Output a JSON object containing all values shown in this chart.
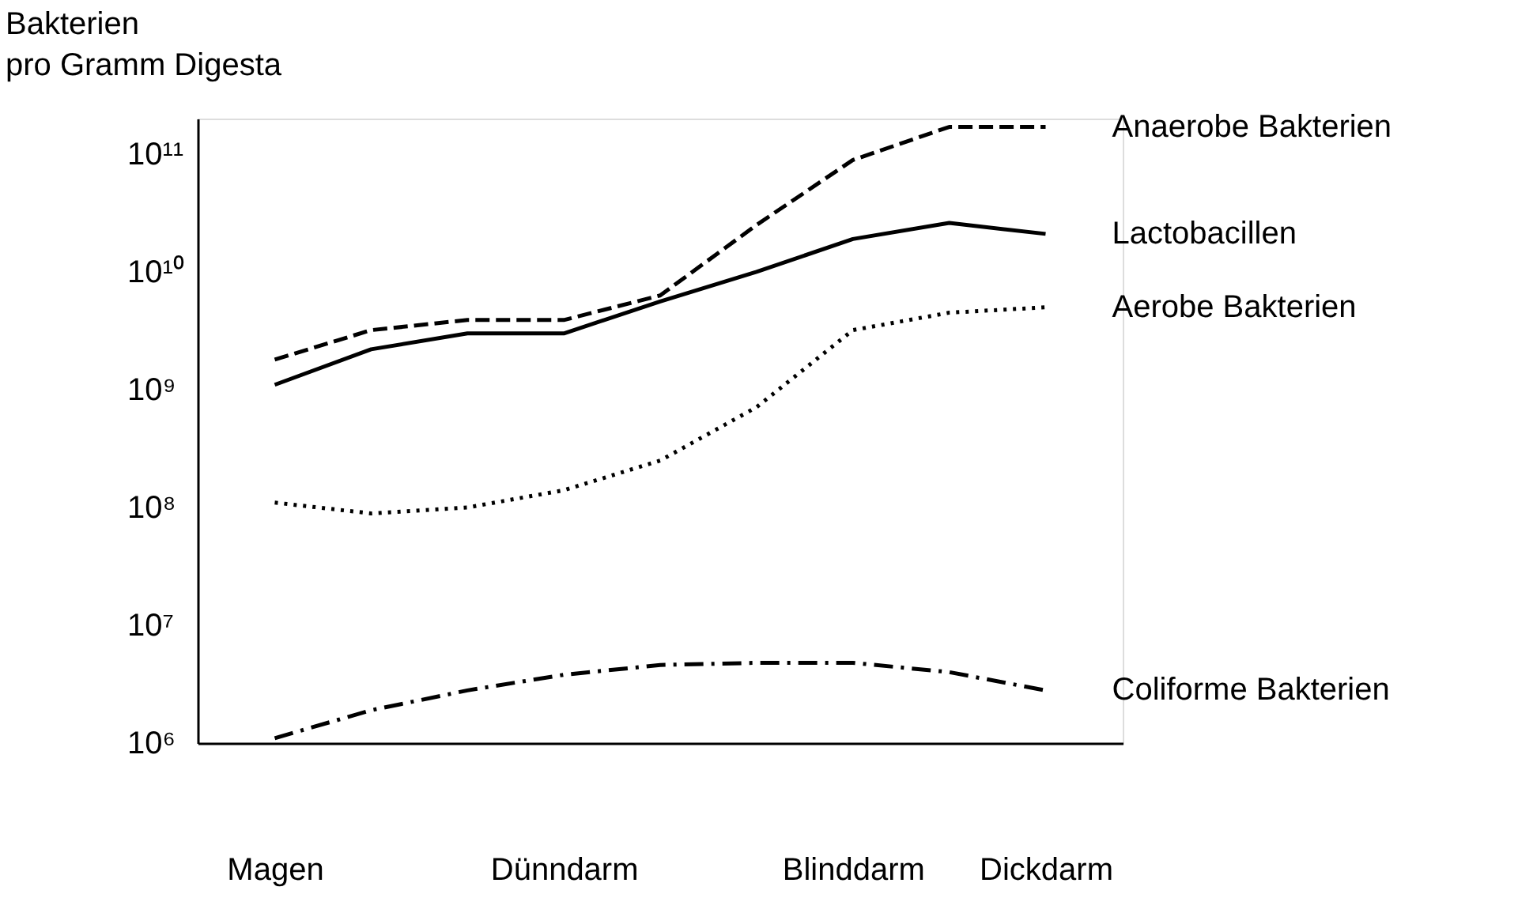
{
  "chart_data": {
    "type": "line",
    "ylabel": "Bakterien\npro Gramm Digesta",
    "log": true,
    "grid": false,
    "legend": false,
    "marker": "none",
    "categories": [
      "Magen",
      null,
      null,
      "Dünndarm",
      null,
      null,
      "Blinddarm",
      null,
      "Dickdarm"
    ],
    "ylim": [
      1000000,
      200000000000
    ],
    "yticks": [
      {
        "value": 1000000,
        "label": "10⁶"
      },
      {
        "value": 10000000,
        "label": "10⁷"
      },
      {
        "value": 100000000,
        "label": "10⁸"
      },
      {
        "value": 1000000000,
        "label": "10⁹"
      },
      {
        "value": 10000000000,
        "label": "10¹⁰"
      },
      {
        "value": 100000000000,
        "label": "10¹¹"
      }
    ],
    "series": [
      {
        "name": "Anaerobe Bakterien",
        "color": "#000000",
        "line_style": "dashed",
        "values": [
          1800000000,
          3200000000,
          3900000000,
          3900000000,
          6300000000,
          25000000000,
          89000000000,
          170000000000,
          170000000000
        ]
      },
      {
        "name": "Lactobacillen",
        "color": "#000000",
        "line_style": "solid",
        "values": [
          1100000000,
          2200000000,
          3000000000,
          3000000000,
          5600000000,
          10000000000,
          19000000000,
          26000000000,
          21000000000
        ]
      },
      {
        "name": "Aerobe Bakterien",
        "color": "#000000",
        "line_style": "dotted",
        "values": [
          110000000,
          89000000,
          100000000,
          140000000,
          250000000,
          710000000,
          3200000000,
          4500000000,
          5000000000
        ]
      },
      {
        "name": "Coliforme Bakterien",
        "color": "#000000",
        "line_style": "dashdot",
        "values": [
          1100000,
          1900000,
          2800000,
          3800000,
          4600000,
          4800000,
          4800000,
          4000000,
          2800000
        ]
      }
    ]
  }
}
